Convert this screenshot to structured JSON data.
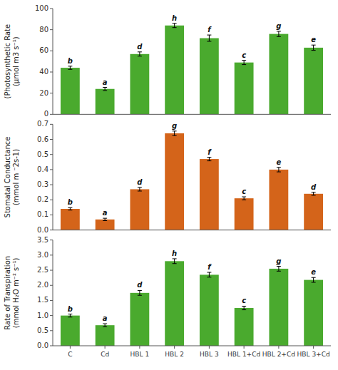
{
  "chart_data": [
    {
      "type": "bar",
      "categories": [
        "C",
        "Cd",
        "HBL 1",
        "HBL 2",
        "HBL 3",
        "HBL 1+Cd",
        "HBL 2+Cd",
        "HBL 3+Cd"
      ],
      "values": [
        44,
        24,
        57,
        84,
        72,
        49,
        76,
        63
      ],
      "errors": [
        1.5,
        1.5,
        2.0,
        2.0,
        3.0,
        2.0,
        2.5,
        2.5
      ],
      "annotations": [
        "b",
        "a",
        "d",
        "h",
        "f",
        "c",
        "g",
        "e"
      ],
      "color": "#4aaa2e",
      "ylabel": "(Photosynthetic Rate\n(μmol m3 s⁻¹)",
      "ylim": [
        0,
        100
      ],
      "yticks": [
        0,
        20,
        40,
        60,
        80,
        100
      ],
      "grid": false,
      "tick_labels": "y"
    },
    {
      "type": "bar",
      "categories": [
        "C",
        "Cd",
        "HBL 1",
        "HBL 2",
        "HBL 3",
        "HBL 1+Cd",
        "HBL 2+Cd",
        "HBL 3+Cd"
      ],
      "values": [
        0.14,
        0.07,
        0.27,
        0.64,
        0.47,
        0.21,
        0.4,
        0.24
      ],
      "errors": [
        0.008,
        0.008,
        0.012,
        0.015,
        0.012,
        0.01,
        0.015,
        0.01
      ],
      "annotations": [
        "b",
        "a",
        "d",
        "g",
        "f",
        "c",
        "e",
        "d"
      ],
      "color": "#d4641a",
      "ylabel": "Stomatal Conductance\n(mmol m ⁻2s-1)",
      "ylim": [
        0,
        0.7
      ],
      "yticks": [
        {
          "value": 0,
          "label": "0.0"
        },
        0.1,
        0.2,
        0.3,
        0.4,
        0.5,
        0.6,
        0.7
      ],
      "grid": false,
      "tick_labels": "y"
    },
    {
      "type": "bar",
      "categories": [
        "C",
        "Cd",
        "HBL 1",
        "HBL 2",
        "HBL 3",
        "HBL 1+Cd",
        "HBL 2+Cd",
        "HBL 3+Cd"
      ],
      "values": [
        1.0,
        0.68,
        1.75,
        2.8,
        2.35,
        1.25,
        2.55,
        2.18
      ],
      "errors": [
        0.05,
        0.05,
        0.08,
        0.08,
        0.08,
        0.06,
        0.08,
        0.08
      ],
      "annotations": [
        "b",
        "a",
        "d",
        "h",
        "f",
        "c",
        "g",
        "e"
      ],
      "color": "#4aaa2e",
      "ylabel": "Rate of Transpiration\n(mmol H₂O m⁻² s⁻¹)",
      "ylim": [
        0,
        3.5
      ],
      "yticks": [
        {
          "value": 0,
          "label": "0.0"
        },
        0.5,
        {
          "value": 1.0,
          "label": "1.0"
        },
        1.5,
        {
          "value": 2.0,
          "label": "2.0"
        },
        2.5,
        {
          "value": 3.0,
          "label": "3.0"
        },
        3.5
      ],
      "grid": false
    }
  ]
}
